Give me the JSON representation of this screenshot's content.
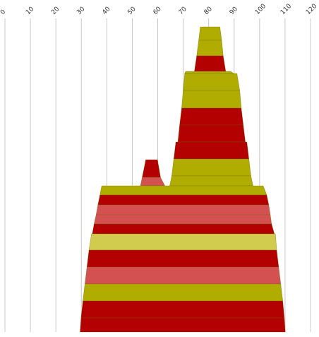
{
  "chart_data": {
    "type": "area",
    "xlim": [
      0,
      120
    ],
    "x_ticks": [
      0,
      10,
      20,
      30,
      40,
      50,
      60,
      70,
      80,
      90,
      100,
      110,
      120
    ],
    "x_tick_labels": [
      "0",
      "10",
      "20",
      "30",
      "40",
      "50",
      "60",
      "70",
      "80",
      "90",
      "100",
      "110",
      "120"
    ],
    "grid": true,
    "colors": {
      "dark_red": "#b30000",
      "olive": "#b0ac00",
      "light_red": "#d35151",
      "light_olive": "#d2cc4e"
    },
    "bands": [
      {
        "left_top": 76.7,
        "right_top": 84.4,
        "left_bottom": 76.1,
        "right_bottom": 85.1,
        "color": "olive"
      },
      {
        "left_top": 76.1,
        "right_top": 85.1,
        "left_bottom": 75.3,
        "right_bottom": 85.7,
        "color": "olive"
      },
      {
        "left_top": 75.3,
        "right_top": 85.7,
        "left_bottom": 74.4,
        "right_bottom": 86.7,
        "color": "dark_red"
      },
      {
        "left_top": 70.6,
        "right_top": 91.1,
        "left_bottom": 70.0,
        "right_bottom": 92.2,
        "color": "olive"
      },
      {
        "left_top": 70.0,
        "right_top": 92.2,
        "left_bottom": 69.4,
        "right_bottom": 92.8,
        "color": "olive"
      },
      {
        "left_top": 69.4,
        "right_top": 92.8,
        "left_bottom": 68.6,
        "right_bottom": 93.6,
        "color": "dark_red"
      },
      {
        "left_top": 68.6,
        "right_top": 93.6,
        "left_bottom": 67.9,
        "right_bottom": 94.4,
        "color": "dark_red"
      },
      {
        "left_top": 67.9,
        "right_top": 94.4,
        "left_bottom": 67.1,
        "right_bottom": 95.0,
        "color": "dark_red"
      },
      {
        "left_top": 67.1,
        "right_top": 95.0,
        "left_bottom": 66.3,
        "right_bottom": 95.8,
        "color": "dark_red"
      },
      {
        "left_top": 66.3,
        "right_top": 95.8,
        "left_bottom": 65.5,
        "right_bottom": 96.6,
        "color": "olive"
      },
      {
        "left_top": 65.5,
        "right_top": 96.6,
        "left_bottom": 64.7,
        "right_bottom": 97.4,
        "color": "olive"
      },
      {
        "left_top": 55.3,
        "right_top": 59.9,
        "left_bottom": 53.9,
        "right_bottom": 61.1,
        "color": "dark_red"
      },
      {
        "left_top": 53.9,
        "right_top": 61.1,
        "left_bottom": 53.2,
        "right_bottom": 62.8,
        "color": "light_red"
      },
      {
        "left_top": 38.0,
        "right_top": 101.4,
        "left_bottom": 37.3,
        "right_bottom": 102.8,
        "color": "olive"
      },
      {
        "left_top": 37.3,
        "right_top": 102.8,
        "left_bottom": 36.5,
        "right_bottom": 103.6,
        "color": "dark_red"
      },
      {
        "left_top": 36.5,
        "right_top": 103.6,
        "left_bottom": 35.8,
        "right_bottom": 104.2,
        "color": "light_red"
      },
      {
        "left_top": 35.8,
        "right_top": 104.2,
        "left_bottom": 35.0,
        "right_bottom": 104.7,
        "color": "light_red"
      },
      {
        "left_top": 35.0,
        "right_top": 104.7,
        "left_bottom": 34.3,
        "right_bottom": 105.8,
        "color": "dark_red"
      },
      {
        "left_top": 34.0,
        "right_top": 106.2,
        "left_bottom": 33.0,
        "right_bottom": 106.7,
        "color": "light_olive"
      },
      {
        "left_top": 33.0,
        "right_top": 106.7,
        "left_bottom": 32.2,
        "right_bottom": 107.5,
        "color": "dark_red"
      },
      {
        "left_top": 32.2,
        "right_top": 107.5,
        "left_bottom": 31.4,
        "right_bottom": 108.3,
        "color": "light_red"
      },
      {
        "left_top": 31.4,
        "right_top": 108.3,
        "left_bottom": 30.6,
        "right_bottom": 109.1,
        "color": "olive"
      },
      {
        "left_top": 30.6,
        "right_top": 109.1,
        "left_bottom": 29.9,
        "right_bottom": 109.7,
        "color": "dark_red"
      },
      {
        "left_top": 29.9,
        "right_top": 109.7,
        "left_bottom": 29.5,
        "right_bottom": 110.1,
        "color": "dark_red"
      }
    ]
  }
}
